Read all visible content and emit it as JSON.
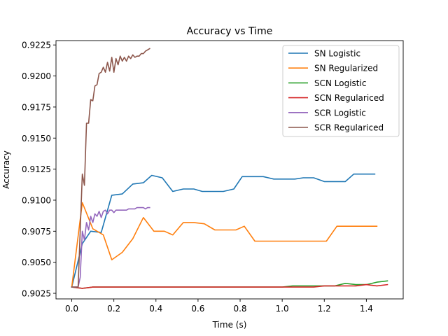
{
  "chart_data": {
    "type": "line",
    "title": "Accuracy vs Time",
    "xlabel": "Time (s)",
    "ylabel": "Accuracy",
    "xlim": [
      -0.075,
      1.575
    ],
    "ylim": [
      0.90205,
      0.92285
    ],
    "xticks": [
      0.0,
      0.2,
      0.4,
      0.6,
      0.8,
      1.0,
      1.2,
      1.4
    ],
    "xtick_labels": [
      "0.0",
      "0.2",
      "0.4",
      "0.6",
      "0.8",
      "1.0",
      "1.2",
      "1.4"
    ],
    "yticks": [
      0.9025,
      0.905,
      0.9075,
      0.91,
      0.9125,
      0.915,
      0.9175,
      0.92,
      0.9225
    ],
    "ytick_labels": [
      "0.9025",
      "0.9050",
      "0.9075",
      "0.9100",
      "0.9125",
      "0.9150",
      "0.9175",
      "0.9200",
      "0.9225"
    ],
    "grid": false,
    "legend_position": "upper right",
    "series": [
      {
        "name": "SN Logistic",
        "color": "#1f77b4",
        "x": [
          0.0,
          0.05,
          0.09,
          0.14,
          0.19,
          0.24,
          0.29,
          0.34,
          0.38,
          0.43,
          0.48,
          0.53,
          0.58,
          0.62,
          0.67,
          0.72,
          0.77,
          0.81,
          0.86,
          0.91,
          0.96,
          1.01,
          1.06,
          1.1,
          1.15,
          1.2,
          1.25,
          1.3,
          1.34,
          1.39,
          1.44
        ],
        "y": [
          0.903,
          0.9065,
          0.9075,
          0.9074,
          0.9104,
          0.9105,
          0.9113,
          0.9114,
          0.912,
          0.9118,
          0.9107,
          0.9109,
          0.9109,
          0.9107,
          0.9107,
          0.9107,
          0.9109,
          0.9119,
          0.9119,
          0.9119,
          0.9117,
          0.9117,
          0.9117,
          0.9118,
          0.9118,
          0.9115,
          0.9115,
          0.9115,
          0.9121,
          0.9121,
          0.9121
        ]
      },
      {
        "name": "SN Regularized",
        "color": "#ff7f0e",
        "x": [
          0.0,
          0.05,
          0.1,
          0.15,
          0.19,
          0.24,
          0.29,
          0.34,
          0.39,
          0.44,
          0.48,
          0.53,
          0.58,
          0.63,
          0.68,
          0.73,
          0.78,
          0.82,
          0.87,
          0.92,
          0.97,
          1.02,
          1.07,
          1.12,
          1.16,
          1.21,
          1.26,
          1.31,
          1.36,
          1.41,
          1.45
        ],
        "y": [
          0.903,
          0.9098,
          0.9077,
          0.9072,
          0.9052,
          0.9058,
          0.9069,
          0.9086,
          0.9075,
          0.9075,
          0.9072,
          0.9082,
          0.9082,
          0.9081,
          0.9076,
          0.9076,
          0.9076,
          0.9079,
          0.9067,
          0.9067,
          0.9067,
          0.9067,
          0.9067,
          0.9067,
          0.9067,
          0.9067,
          0.9079,
          0.9079,
          0.9079,
          0.9079,
          0.9079
        ]
      },
      {
        "name": "SCN Logistic",
        "color": "#2ca02c",
        "x": [
          0.0,
          0.05,
          0.1,
          0.15,
          0.2,
          0.25,
          0.3,
          0.35,
          0.4,
          0.45,
          0.5,
          0.55,
          0.6,
          0.65,
          0.7,
          0.75,
          0.8,
          0.85,
          0.9,
          0.95,
          1.0,
          1.05,
          1.1,
          1.15,
          1.2,
          1.25,
          1.3,
          1.35,
          1.4,
          1.45,
          1.5
        ],
        "y": [
          0.903,
          0.9029,
          0.903,
          0.903,
          0.903,
          0.903,
          0.903,
          0.903,
          0.903,
          0.903,
          0.903,
          0.903,
          0.903,
          0.903,
          0.903,
          0.903,
          0.903,
          0.903,
          0.903,
          0.903,
          0.903,
          0.9031,
          0.9031,
          0.9031,
          0.9031,
          0.9031,
          0.9033,
          0.9032,
          0.9032,
          0.9034,
          0.9035
        ]
      },
      {
        "name": "SCN Regulariced",
        "color": "#d62728",
        "x": [
          0.0,
          0.05,
          0.1,
          0.15,
          0.2,
          0.25,
          0.3,
          0.35,
          0.4,
          0.45,
          0.5,
          0.55,
          0.6,
          0.65,
          0.7,
          0.75,
          0.8,
          0.85,
          0.9,
          0.95,
          1.0,
          1.05,
          1.1,
          1.15,
          1.2,
          1.25,
          1.3,
          1.35,
          1.4,
          1.45,
          1.5
        ],
        "y": [
          0.903,
          0.9029,
          0.903,
          0.903,
          0.903,
          0.903,
          0.903,
          0.903,
          0.903,
          0.903,
          0.903,
          0.903,
          0.903,
          0.903,
          0.903,
          0.903,
          0.903,
          0.903,
          0.903,
          0.903,
          0.903,
          0.903,
          0.903,
          0.903,
          0.9031,
          0.9031,
          0.9031,
          0.9031,
          0.9032,
          0.9031,
          0.9032
        ]
      },
      {
        "name": "SCR Logistic",
        "color": "#9467bd",
        "x": [
          0.0,
          0.03,
          0.04,
          0.05,
          0.06,
          0.07,
          0.08,
          0.09,
          0.1,
          0.11,
          0.12,
          0.13,
          0.14,
          0.15,
          0.16,
          0.17,
          0.18,
          0.19,
          0.2,
          0.21,
          0.22,
          0.23,
          0.24,
          0.25,
          0.26,
          0.27,
          0.28,
          0.29,
          0.3,
          0.31,
          0.32,
          0.33,
          0.34,
          0.35,
          0.36,
          0.37
        ],
        "y": [
          0.903,
          0.903,
          0.9038,
          0.9075,
          0.9068,
          0.9082,
          0.9076,
          0.9087,
          0.9082,
          0.9089,
          0.9087,
          0.9091,
          0.9086,
          0.9091,
          0.9092,
          0.9089,
          0.9092,
          0.9092,
          0.909,
          0.9092,
          0.9092,
          0.9092,
          0.9092,
          0.9092,
          0.9092,
          0.9093,
          0.9093,
          0.9093,
          0.9093,
          0.9094,
          0.9094,
          0.9094,
          0.9094,
          0.9093,
          0.9094,
          0.9094
        ]
      },
      {
        "name": "SCR Regulariced",
        "color": "#8c564b",
        "x": [
          0.0,
          0.03,
          0.05,
          0.06,
          0.07,
          0.08,
          0.09,
          0.1,
          0.11,
          0.12,
          0.13,
          0.14,
          0.15,
          0.16,
          0.17,
          0.18,
          0.19,
          0.2,
          0.21,
          0.22,
          0.23,
          0.24,
          0.25,
          0.26,
          0.27,
          0.28,
          0.29,
          0.3,
          0.31,
          0.32,
          0.33,
          0.34,
          0.35,
          0.36,
          0.37
        ],
        "y": [
          0.903,
          0.903,
          0.9121,
          0.9112,
          0.9162,
          0.9162,
          0.9181,
          0.918,
          0.9192,
          0.9193,
          0.9202,
          0.9203,
          0.9207,
          0.9203,
          0.9211,
          0.9204,
          0.9215,
          0.9203,
          0.9214,
          0.9209,
          0.9216,
          0.9212,
          0.9215,
          0.9212,
          0.9216,
          0.9214,
          0.9217,
          0.9215,
          0.9216,
          0.9216,
          0.9218,
          0.9218,
          0.922,
          0.9221,
          0.9222
        ]
      }
    ]
  }
}
